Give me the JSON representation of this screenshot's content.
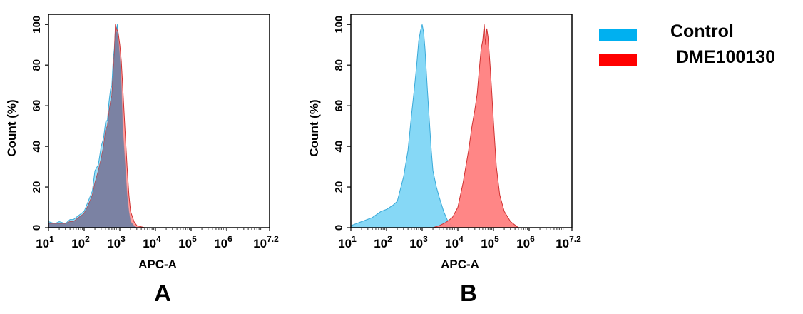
{
  "legend": {
    "entries": [
      {
        "label": "Control",
        "color": "#00B0F0"
      },
      {
        "label": "DME100130",
        "color": "#FF0000"
      }
    ]
  },
  "panels": [
    {
      "label": "A"
    },
    {
      "label": "B"
    }
  ],
  "chart_data": [
    {
      "type": "area",
      "panel": "A",
      "xlabel": "APC-A",
      "ylabel": "Count  (%)",
      "xscale": "log",
      "xlim": [
        10,
        15848932
      ],
      "ylim": [
        0,
        105
      ],
      "yticks": [
        "0",
        "20",
        "40",
        "60",
        "80",
        "100"
      ],
      "xtick_labels": [
        {
          "base": "10",
          "exp": "1",
          "value": 10
        },
        {
          "base": "10",
          "exp": "2",
          "value": 100
        },
        {
          "base": "10",
          "exp": "3",
          "value": 1000
        },
        {
          "base": "10",
          "exp": "4",
          "value": 10000
        },
        {
          "base": "10",
          "exp": "5",
          "value": 100000
        },
        {
          "base": "10",
          "exp": "6",
          "value": 1000000
        },
        {
          "base": "10",
          "exp": "7.2",
          "value": 15848932
        }
      ],
      "series": [
        {
          "name": "Control",
          "fill": "#7FD6F5",
          "stroke": "#3AA9D8",
          "x": [
            10,
            15,
            20,
            30,
            40,
            50,
            70,
            100,
            130,
            170,
            200,
            250,
            300,
            350,
            400,
            450,
            500,
            550,
            600,
            650,
            700,
            750,
            800,
            850,
            900,
            1000,
            1100,
            1200,
            1400,
            1600,
            1800,
            2000,
            2500,
            3000,
            5000
          ],
          "y": [
            3,
            2,
            3,
            2,
            4,
            4,
            6,
            8,
            13,
            18,
            28,
            31,
            40,
            44,
            52,
            53,
            62,
            68,
            70,
            82,
            88,
            98,
            96,
            100,
            94,
            84,
            72,
            50,
            32,
            16,
            8,
            3,
            1,
            0,
            0
          ]
        },
        {
          "name": "DME100130",
          "fill": "#FF8080",
          "stroke": "#D03030",
          "x": [
            10,
            15,
            20,
            30,
            40,
            50,
            70,
            100,
            130,
            170,
            200,
            250,
            300,
            350,
            400,
            450,
            500,
            550,
            600,
            650,
            700,
            750,
            800,
            850,
            900,
            1000,
            1100,
            1200,
            1400,
            1600,
            1800,
            2000,
            2500,
            3000,
            5000
          ],
          "y": [
            2,
            2,
            2,
            2,
            3,
            3,
            5,
            7,
            11,
            16,
            22,
            28,
            34,
            40,
            48,
            50,
            57,
            62,
            65,
            75,
            85,
            100,
            98,
            97,
            96,
            90,
            82,
            70,
            48,
            30,
            16,
            8,
            3,
            1,
            0
          ]
        }
      ]
    },
    {
      "type": "area",
      "panel": "B",
      "xlabel": "APC-A",
      "ylabel": "Count  (%)",
      "xscale": "log",
      "xlim": [
        10,
        15848932
      ],
      "ylim": [
        0,
        105
      ],
      "yticks": [
        "0",
        "20",
        "40",
        "60",
        "80",
        "100"
      ],
      "xtick_labels": [
        {
          "base": "10",
          "exp": "1",
          "value": 10
        },
        {
          "base": "10",
          "exp": "2",
          "value": 100
        },
        {
          "base": "10",
          "exp": "3",
          "value": 1000
        },
        {
          "base": "10",
          "exp": "4",
          "value": 10000
        },
        {
          "base": "10",
          "exp": "5",
          "value": 100000
        },
        {
          "base": "10",
          "exp": "6",
          "value": 1000000
        },
        {
          "base": "10",
          "exp": "7.2",
          "value": 15848932
        }
      ],
      "series": [
        {
          "name": "Control",
          "fill": "#7FD6F5",
          "stroke": "#3AA9D8",
          "x": [
            10,
            20,
            40,
            70,
            100,
            150,
            200,
            300,
            400,
            500,
            600,
            700,
            800,
            900,
            1000,
            1100,
            1200,
            1400,
            1600,
            1800,
            2000,
            2500,
            3000,
            4000,
            5000,
            6000,
            8000,
            10000
          ],
          "y": [
            1,
            3,
            5,
            8,
            9,
            11,
            13,
            25,
            38,
            55,
            68,
            80,
            92,
            97,
            100,
            96,
            88,
            68,
            52,
            38,
            28,
            20,
            15,
            8,
            4,
            2,
            0,
            0
          ]
        },
        {
          "name": "DME100130",
          "fill": "#FF8080",
          "stroke": "#D03030",
          "x": [
            2000,
            3000,
            4000,
            5000,
            7000,
            10000,
            14000,
            20000,
            25000,
            30000,
            35000,
            40000,
            45000,
            50000,
            55000,
            60000,
            65000,
            70000,
            80000,
            90000,
            100000,
            120000,
            150000,
            200000,
            300000,
            500000
          ],
          "y": [
            0,
            1,
            2,
            3,
            5,
            10,
            22,
            38,
            50,
            58,
            66,
            78,
            88,
            92,
            100,
            90,
            98,
            94,
            80,
            66,
            52,
            30,
            16,
            8,
            3,
            0
          ]
        }
      ]
    }
  ]
}
